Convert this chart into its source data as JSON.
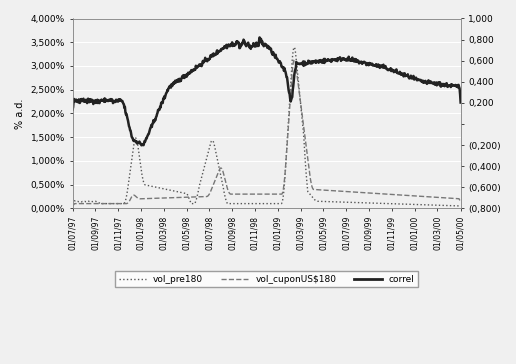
{
  "title": "",
  "xlabel": "",
  "ylabel_left": "% a.d.",
  "ylabel_right": "",
  "x_labels": [
    "01/07/97",
    "01/09/97",
    "01/11/97",
    "01/01/98",
    "01/03/98",
    "01/05/98",
    "01/07/98",
    "01/09/98",
    "01/11/98",
    "01/01/99",
    "01/03/99",
    "01/05/99",
    "01/07/99",
    "01/09/99",
    "01/11/99",
    "01/01/00",
    "01/03/00",
    "01/05/00"
  ],
  "left_ylim": [
    0.0,
    0.04
  ],
  "left_yticks": [
    0.0,
    0.005,
    0.01,
    0.015,
    0.02,
    0.025,
    0.03,
    0.035,
    0.04
  ],
  "left_yticklabels": [
    "0,000%",
    "0,500%",
    "1,000%",
    "1,500%",
    "2,000%",
    "2,500%",
    "3,000%",
    "3,500%",
    "4,000%"
  ],
  "right_ylim": [
    -0.8,
    1.0
  ],
  "right_yticks": [
    -0.8,
    -0.6,
    -0.4,
    -0.2,
    0.0,
    0.2,
    0.4,
    0.6,
    0.8,
    1.0
  ],
  "right_yticklabels": [
    "(0,800)",
    "(0,600)",
    "(0,400)",
    "(0,200)",
    "",
    "0,200",
    "0,400",
    "0,600",
    "0,800",
    "1,000"
  ],
  "legend_entries": [
    "vol_pre180",
    "vol_cuponUS$180",
    "correl"
  ],
  "background_color": "#f0f0f0"
}
